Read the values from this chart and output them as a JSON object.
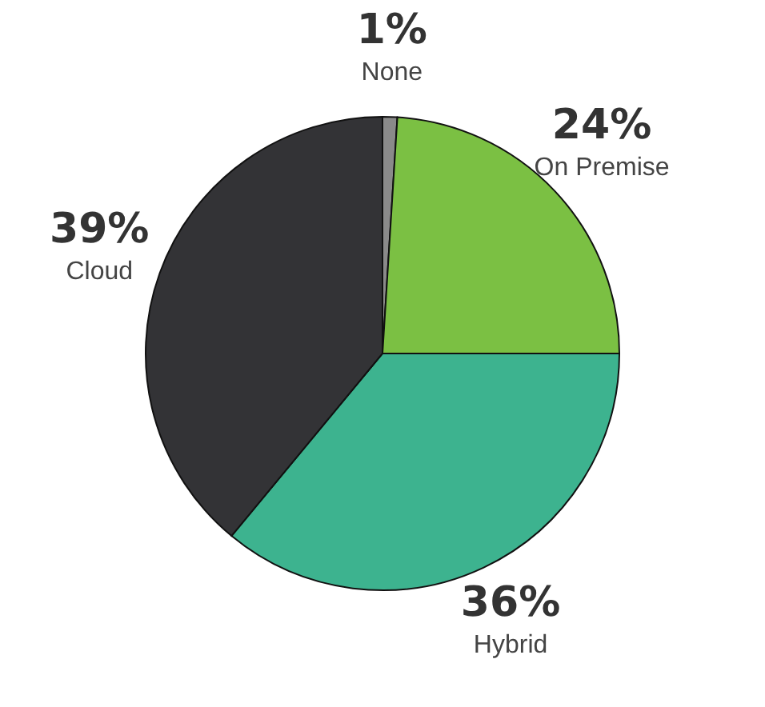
{
  "chart_data": {
    "type": "pie",
    "categories": [
      "None",
      "On Premise",
      "Hybrid",
      "Cloud"
    ],
    "values": [
      1,
      24,
      36,
      39
    ],
    "colors": [
      "#8a8a8a",
      "#7bc043",
      "#3db38f",
      "#333336"
    ],
    "value_labels": [
      "1%",
      "24%",
      "36%",
      "39%"
    ]
  }
}
